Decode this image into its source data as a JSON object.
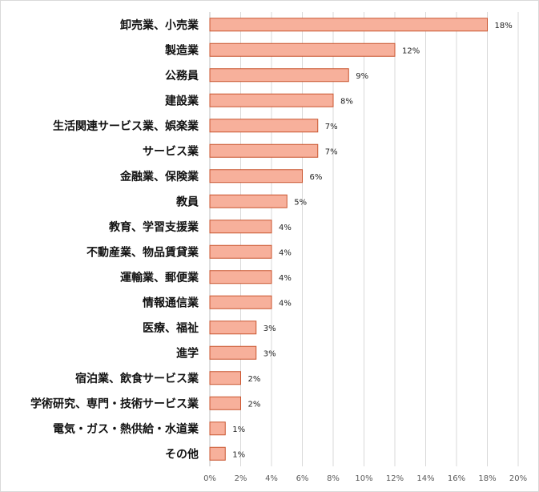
{
  "chart_data": {
    "type": "bar",
    "orientation": "horizontal",
    "categories": [
      "卸売業、小売業",
      "製造業",
      "公務員",
      "建設業",
      "生活関連サービス業、娯楽業",
      "サービス業",
      "金融業、保険業",
      "教員",
      "教育、学習支援業",
      "不動産業、物品賃貸業",
      "運輸業、郵便業",
      "情報通信業",
      "医療、福祉",
      "進学",
      "宿泊業、飲食サービス業",
      "学術研究、専門・技術サービス業",
      "電気・ガス・熱供給・水道業",
      "その他"
    ],
    "values": [
      18,
      12,
      9,
      8,
      7,
      7,
      6,
      5,
      4,
      4,
      4,
      4,
      3,
      3,
      2,
      2,
      1,
      1
    ],
    "data_labels": [
      "18%",
      "12%",
      "9%",
      "8%",
      "7%",
      "7%",
      "6%",
      "5%",
      "4%",
      "4%",
      "4%",
      "4%",
      "3%",
      "3%",
      "2%",
      "2%",
      "1%",
      "1%"
    ],
    "x_ticks": [
      0,
      2,
      4,
      6,
      8,
      10,
      12,
      14,
      16,
      18,
      20
    ],
    "x_tick_labels": [
      "0%",
      "2%",
      "4%",
      "6%",
      "8%",
      "10%",
      "12%",
      "14%",
      "16%",
      "18%",
      "20%"
    ],
    "xlim": [
      0,
      20
    ],
    "title": "",
    "xlabel": "",
    "ylabel": "",
    "grid": "vertical",
    "legend": "none",
    "colors": {
      "bar_fill": "#f7b09b",
      "bar_stroke": "#c9552f",
      "grid": "#d9d9d9",
      "axis": "#bfbfbf"
    }
  }
}
